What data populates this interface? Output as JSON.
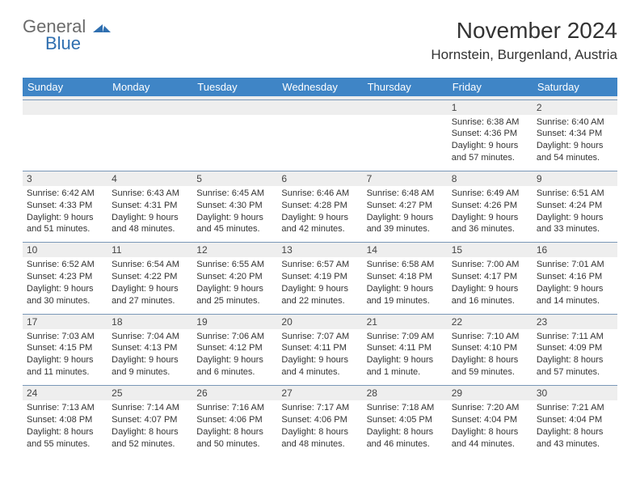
{
  "logo": {
    "text1": "General",
    "text2": "Blue"
  },
  "title": "November 2024",
  "location": "Hornstein, Burgenland, Austria",
  "colors": {
    "header_bg": "#3f85c6",
    "header_text": "#ffffff",
    "daynum_bg": "#eeeeee",
    "row_border": "#7a98b8",
    "logo_gray": "#6b6b6b",
    "logo_blue": "#2f6fb0",
    "body_text": "#333333"
  },
  "day_headers": [
    "Sunday",
    "Monday",
    "Tuesday",
    "Wednesday",
    "Thursday",
    "Friday",
    "Saturday"
  ],
  "weeks": [
    [
      {
        "blank": true
      },
      {
        "blank": true
      },
      {
        "blank": true
      },
      {
        "blank": true
      },
      {
        "blank": true
      },
      {
        "num": "1",
        "sunrise": "Sunrise: 6:38 AM",
        "sunset": "Sunset: 4:36 PM",
        "day1": "Daylight: 9 hours",
        "day2": "and 57 minutes."
      },
      {
        "num": "2",
        "sunrise": "Sunrise: 6:40 AM",
        "sunset": "Sunset: 4:34 PM",
        "day1": "Daylight: 9 hours",
        "day2": "and 54 minutes."
      }
    ],
    [
      {
        "num": "3",
        "sunrise": "Sunrise: 6:42 AM",
        "sunset": "Sunset: 4:33 PM",
        "day1": "Daylight: 9 hours",
        "day2": "and 51 minutes."
      },
      {
        "num": "4",
        "sunrise": "Sunrise: 6:43 AM",
        "sunset": "Sunset: 4:31 PM",
        "day1": "Daylight: 9 hours",
        "day2": "and 48 minutes."
      },
      {
        "num": "5",
        "sunrise": "Sunrise: 6:45 AM",
        "sunset": "Sunset: 4:30 PM",
        "day1": "Daylight: 9 hours",
        "day2": "and 45 minutes."
      },
      {
        "num": "6",
        "sunrise": "Sunrise: 6:46 AM",
        "sunset": "Sunset: 4:28 PM",
        "day1": "Daylight: 9 hours",
        "day2": "and 42 minutes."
      },
      {
        "num": "7",
        "sunrise": "Sunrise: 6:48 AM",
        "sunset": "Sunset: 4:27 PM",
        "day1": "Daylight: 9 hours",
        "day2": "and 39 minutes."
      },
      {
        "num": "8",
        "sunrise": "Sunrise: 6:49 AM",
        "sunset": "Sunset: 4:26 PM",
        "day1": "Daylight: 9 hours",
        "day2": "and 36 minutes."
      },
      {
        "num": "9",
        "sunrise": "Sunrise: 6:51 AM",
        "sunset": "Sunset: 4:24 PM",
        "day1": "Daylight: 9 hours",
        "day2": "and 33 minutes."
      }
    ],
    [
      {
        "num": "10",
        "sunrise": "Sunrise: 6:52 AM",
        "sunset": "Sunset: 4:23 PM",
        "day1": "Daylight: 9 hours",
        "day2": "and 30 minutes."
      },
      {
        "num": "11",
        "sunrise": "Sunrise: 6:54 AM",
        "sunset": "Sunset: 4:22 PM",
        "day1": "Daylight: 9 hours",
        "day2": "and 27 minutes."
      },
      {
        "num": "12",
        "sunrise": "Sunrise: 6:55 AM",
        "sunset": "Sunset: 4:20 PM",
        "day1": "Daylight: 9 hours",
        "day2": "and 25 minutes."
      },
      {
        "num": "13",
        "sunrise": "Sunrise: 6:57 AM",
        "sunset": "Sunset: 4:19 PM",
        "day1": "Daylight: 9 hours",
        "day2": "and 22 minutes."
      },
      {
        "num": "14",
        "sunrise": "Sunrise: 6:58 AM",
        "sunset": "Sunset: 4:18 PM",
        "day1": "Daylight: 9 hours",
        "day2": "and 19 minutes."
      },
      {
        "num": "15",
        "sunrise": "Sunrise: 7:00 AM",
        "sunset": "Sunset: 4:17 PM",
        "day1": "Daylight: 9 hours",
        "day2": "and 16 minutes."
      },
      {
        "num": "16",
        "sunrise": "Sunrise: 7:01 AM",
        "sunset": "Sunset: 4:16 PM",
        "day1": "Daylight: 9 hours",
        "day2": "and 14 minutes."
      }
    ],
    [
      {
        "num": "17",
        "sunrise": "Sunrise: 7:03 AM",
        "sunset": "Sunset: 4:15 PM",
        "day1": "Daylight: 9 hours",
        "day2": "and 11 minutes."
      },
      {
        "num": "18",
        "sunrise": "Sunrise: 7:04 AM",
        "sunset": "Sunset: 4:13 PM",
        "day1": "Daylight: 9 hours",
        "day2": "and 9 minutes."
      },
      {
        "num": "19",
        "sunrise": "Sunrise: 7:06 AM",
        "sunset": "Sunset: 4:12 PM",
        "day1": "Daylight: 9 hours",
        "day2": "and 6 minutes."
      },
      {
        "num": "20",
        "sunrise": "Sunrise: 7:07 AM",
        "sunset": "Sunset: 4:11 PM",
        "day1": "Daylight: 9 hours",
        "day2": "and 4 minutes."
      },
      {
        "num": "21",
        "sunrise": "Sunrise: 7:09 AM",
        "sunset": "Sunset: 4:11 PM",
        "day1": "Daylight: 9 hours",
        "day2": "and 1 minute."
      },
      {
        "num": "22",
        "sunrise": "Sunrise: 7:10 AM",
        "sunset": "Sunset: 4:10 PM",
        "day1": "Daylight: 8 hours",
        "day2": "and 59 minutes."
      },
      {
        "num": "23",
        "sunrise": "Sunrise: 7:11 AM",
        "sunset": "Sunset: 4:09 PM",
        "day1": "Daylight: 8 hours",
        "day2": "and 57 minutes."
      }
    ],
    [
      {
        "num": "24",
        "sunrise": "Sunrise: 7:13 AM",
        "sunset": "Sunset: 4:08 PM",
        "day1": "Daylight: 8 hours",
        "day2": "and 55 minutes."
      },
      {
        "num": "25",
        "sunrise": "Sunrise: 7:14 AM",
        "sunset": "Sunset: 4:07 PM",
        "day1": "Daylight: 8 hours",
        "day2": "and 52 minutes."
      },
      {
        "num": "26",
        "sunrise": "Sunrise: 7:16 AM",
        "sunset": "Sunset: 4:06 PM",
        "day1": "Daylight: 8 hours",
        "day2": "and 50 minutes."
      },
      {
        "num": "27",
        "sunrise": "Sunrise: 7:17 AM",
        "sunset": "Sunset: 4:06 PM",
        "day1": "Daylight: 8 hours",
        "day2": "and 48 minutes."
      },
      {
        "num": "28",
        "sunrise": "Sunrise: 7:18 AM",
        "sunset": "Sunset: 4:05 PM",
        "day1": "Daylight: 8 hours",
        "day2": "and 46 minutes."
      },
      {
        "num": "29",
        "sunrise": "Sunrise: 7:20 AM",
        "sunset": "Sunset: 4:04 PM",
        "day1": "Daylight: 8 hours",
        "day2": "and 44 minutes."
      },
      {
        "num": "30",
        "sunrise": "Sunrise: 7:21 AM",
        "sunset": "Sunset: 4:04 PM",
        "day1": "Daylight: 8 hours",
        "day2": "and 43 minutes."
      }
    ]
  ]
}
